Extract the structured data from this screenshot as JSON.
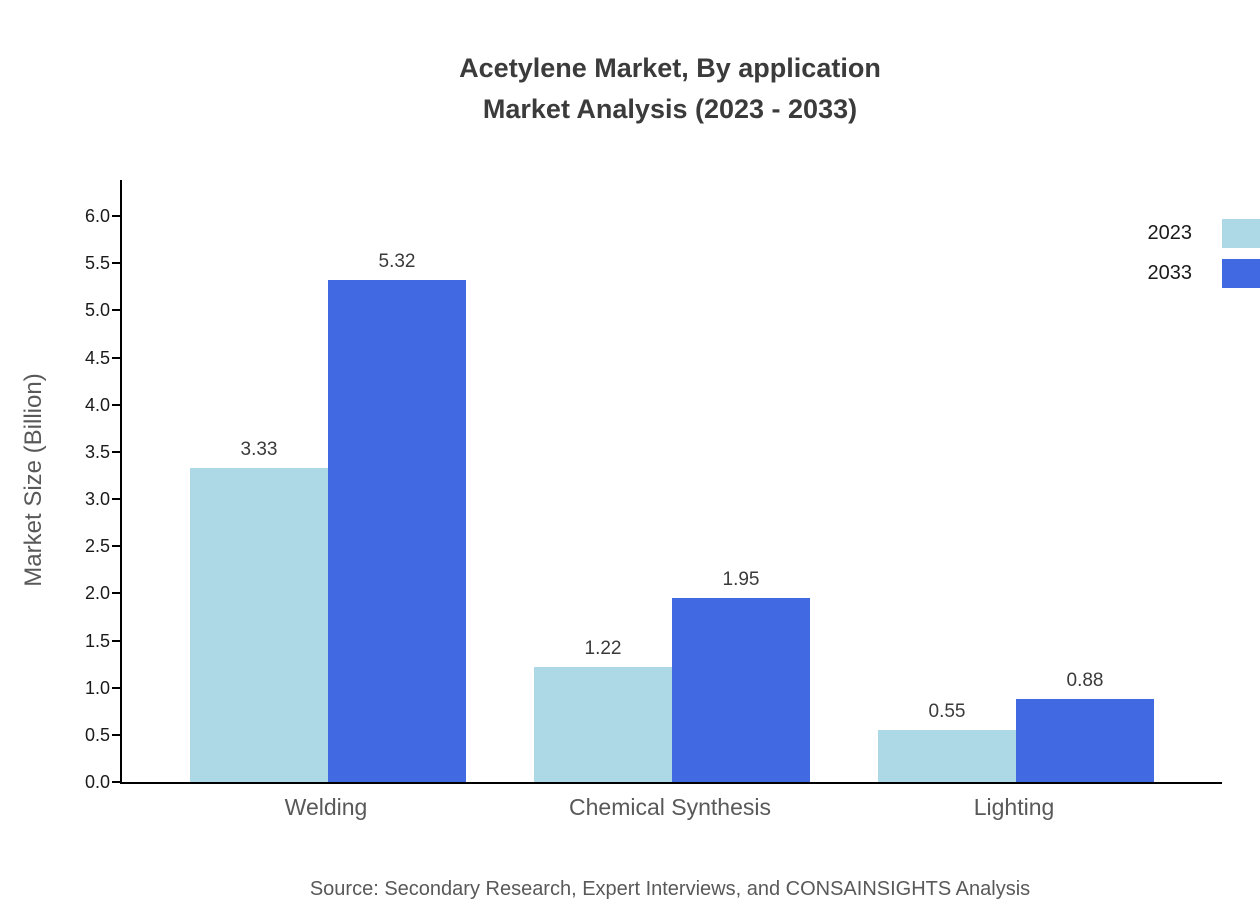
{
  "source": "Source: Secondary Research, Expert Interviews, and CONSAINSIGHTS Analysis",
  "chart_data": {
    "type": "bar",
    "title": "Acetylene Market, By application Market Analysis (2023 - 2033)",
    "title_lines": [
      "Acetylene Market, By application",
      "Market Analysis (2023 - 2033)"
    ],
    "categories": [
      "Welding",
      "Chemical Synthesis",
      "Lighting"
    ],
    "series": [
      {
        "name": "2023",
        "color": "#add8e6",
        "values": [
          3.33,
          1.22,
          0.55
        ]
      },
      {
        "name": "2033",
        "color": "#4169e1",
        "values": [
          5.32,
          1.95,
          0.88
        ]
      }
    ],
    "xlabel": "",
    "ylabel": "Market Size (Billion)",
    "ylim": [
      0,
      6.4
    ],
    "yticks": [
      0.0,
      0.5,
      1.0,
      1.5,
      2.0,
      2.5,
      3.0,
      3.5,
      4.0,
      4.5,
      5.0,
      5.5,
      6.0
    ],
    "grid": false,
    "legend_position": "top-right"
  }
}
